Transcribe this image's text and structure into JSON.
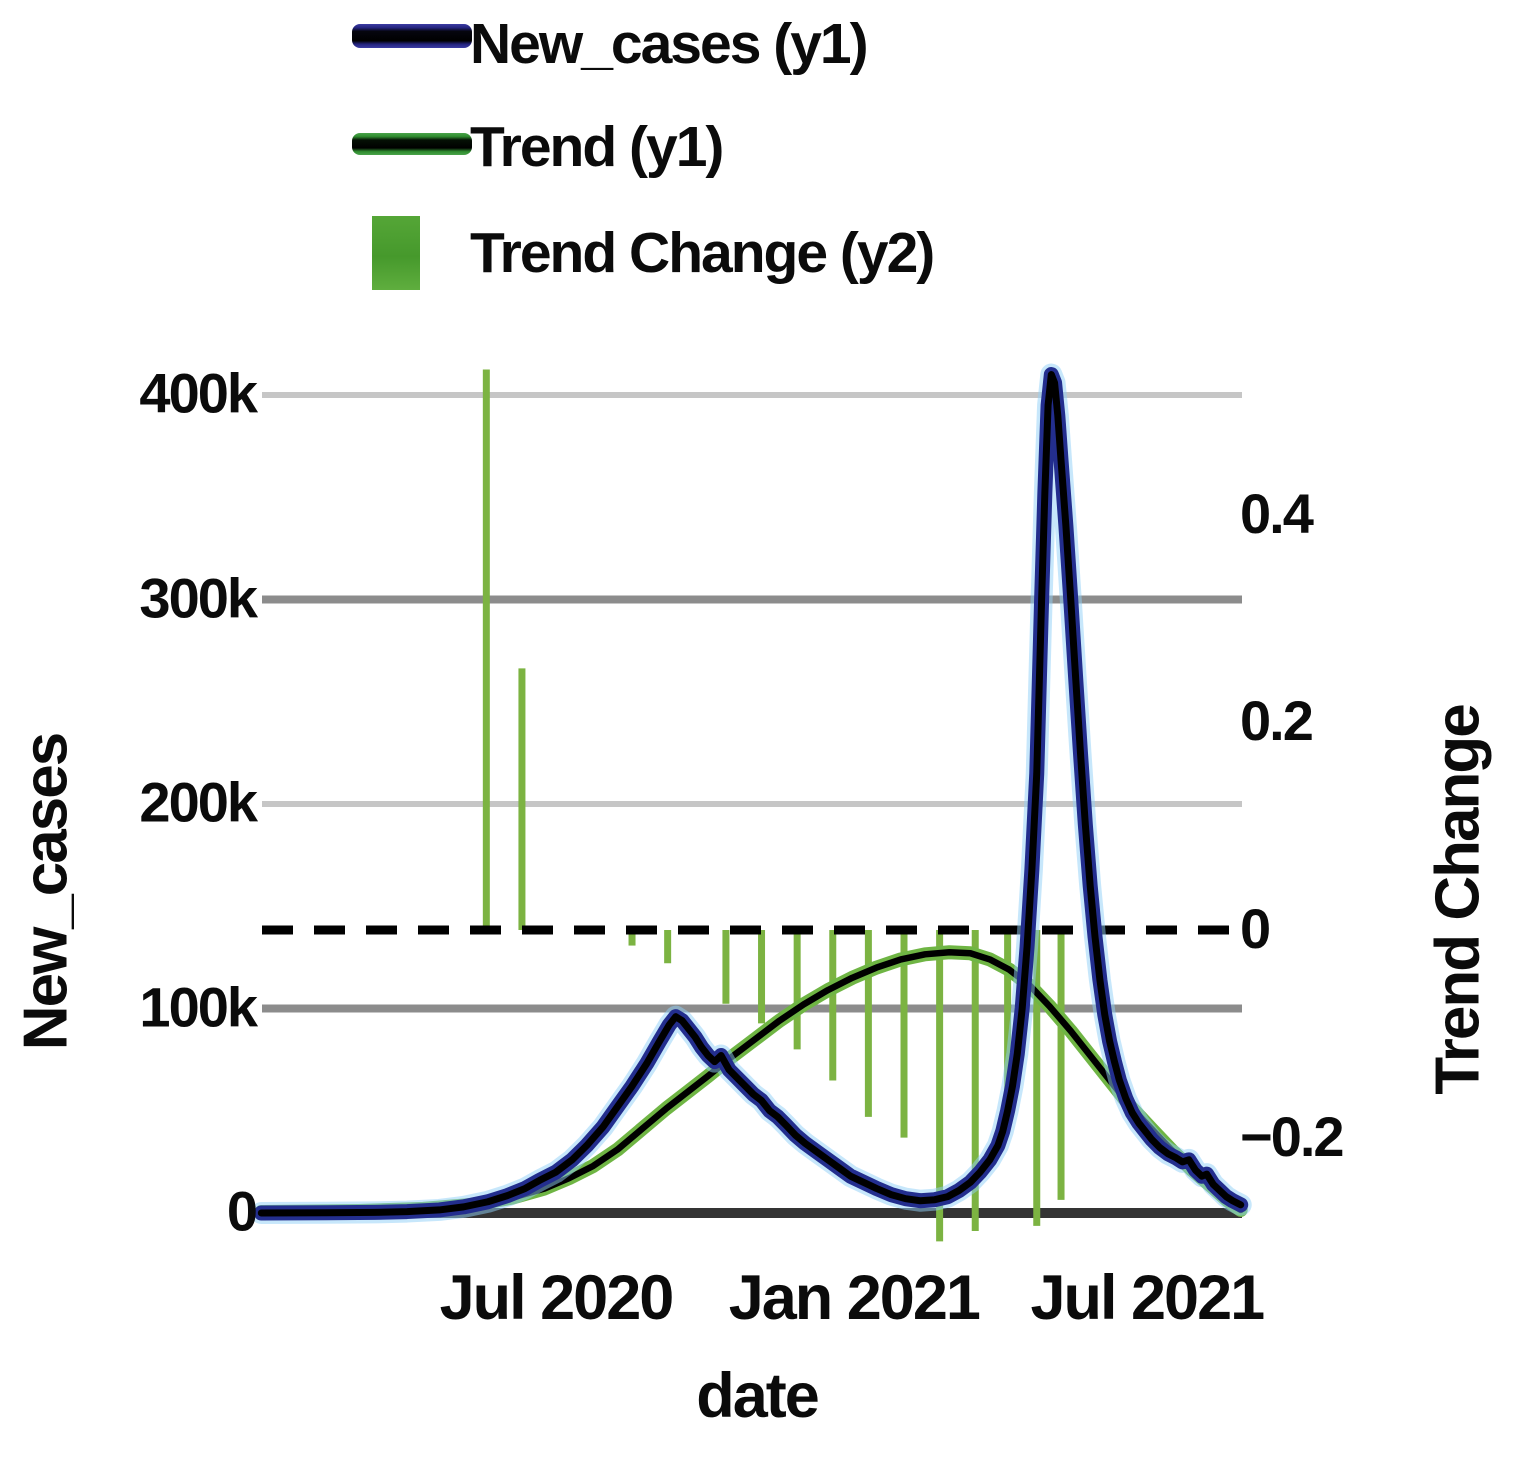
{
  "legend": {
    "items": [
      {
        "label": "New_cases (y1)",
        "marker": "line",
        "color": "#232e8e"
      },
      {
        "label": "Trend (y1)",
        "marker": "line",
        "color": "#2f8c2f"
      },
      {
        "label": "Trend Change (y2)",
        "marker": "square",
        "color": "#46992c"
      }
    ]
  },
  "axes": {
    "y1": {
      "title": "New_cases",
      "unit": "cases per day (k = thousand)",
      "ticks": [
        {
          "label": "0",
          "value": 0
        },
        {
          "label": "100k",
          "value": 100
        },
        {
          "label": "200k",
          "value": 200
        },
        {
          "label": "300k",
          "value": 300
        },
        {
          "label": "400k",
          "value": 400
        }
      ],
      "range_k": [
        0,
        418
      ]
    },
    "y2": {
      "title": "Trend Change",
      "ticks": [
        {
          "label": "−0.2",
          "value": -0.2
        },
        {
          "label": "0",
          "value": 0
        },
        {
          "label": "0.2",
          "value": 0.2
        },
        {
          "label": "0.4",
          "value": 0.4
        }
      ],
      "range": [
        -0.31,
        0.56
      ],
      "zero_line": "dashed"
    },
    "x": {
      "title": "date",
      "start_date": "2020-01-01",
      "t_is": "days since start_date",
      "ticks": [
        {
          "label": "Jul 2020",
          "t": 182
        },
        {
          "label": "Jan 2021",
          "t": 366
        },
        {
          "label": "Jul 2021",
          "t": 547
        }
      ],
      "range_t": [
        0,
        605
      ]
    }
  },
  "chart_data": {
    "type": "line",
    "title": "",
    "xlabel": "date",
    "ylabel_left": "New_cases",
    "ylabel_right": "Trend Change",
    "grid": "horizontal",
    "legend_position": "top-left",
    "series": [
      {
        "name": "New_cases (y1)",
        "axis": "y1",
        "type": "line",
        "color": "#232e8e",
        "units": "thousands",
        "points": [
          [
            0,
            0
          ],
          [
            40,
            0.1
          ],
          [
            70,
            0.3
          ],
          [
            90,
            0.7
          ],
          [
            110,
            1.5
          ],
          [
            125,
            3
          ],
          [
            140,
            5.5
          ],
          [
            152,
            8.5
          ],
          [
            163,
            12
          ],
          [
            172,
            16
          ],
          [
            182,
            20
          ],
          [
            192,
            26
          ],
          [
            201,
            33
          ],
          [
            211,
            42
          ],
          [
            220,
            52
          ],
          [
            229,
            62
          ],
          [
            238,
            73
          ],
          [
            246,
            84
          ],
          [
            252,
            92
          ],
          [
            256,
            96
          ],
          [
            260,
            94
          ],
          [
            264,
            90
          ],
          [
            268,
            86
          ],
          [
            272,
            81
          ],
          [
            276,
            77
          ],
          [
            280,
            74
          ],
          [
            284,
            77
          ],
          [
            289,
            70
          ],
          [
            294,
            66
          ],
          [
            299,
            62
          ],
          [
            304,
            58
          ],
          [
            309,
            55
          ],
          [
            314,
            50
          ],
          [
            319,
            47
          ],
          [
            324,
            43
          ],
          [
            330,
            38
          ],
          [
            336,
            34
          ],
          [
            343,
            30
          ],
          [
            350,
            26
          ],
          [
            357,
            22
          ],
          [
            364,
            18
          ],
          [
            372,
            15
          ],
          [
            380,
            12
          ],
          [
            389,
            9
          ],
          [
            398,
            7
          ],
          [
            407,
            6
          ],
          [
            416,
            6.5
          ],
          [
            424,
            8
          ],
          [
            431,
            11
          ],
          [
            438,
            15
          ],
          [
            444,
            20
          ],
          [
            450,
            26
          ],
          [
            455,
            33
          ],
          [
            458,
            40
          ],
          [
            461,
            50
          ],
          [
            464,
            62
          ],
          [
            467,
            78
          ],
          [
            470,
            100
          ],
          [
            473,
            130
          ],
          [
            476,
            168
          ],
          [
            479,
            215
          ],
          [
            482,
            300
          ],
          [
            484,
            352
          ],
          [
            486,
            395
          ],
          [
            488,
            410
          ],
          [
            490,
            406
          ],
          [
            492,
            390
          ],
          [
            494,
            368
          ],
          [
            497,
            336
          ],
          [
            500,
            300
          ],
          [
            503,
            262
          ],
          [
            506,
            225
          ],
          [
            509,
            190
          ],
          [
            512,
            160
          ],
          [
            515,
            135
          ],
          [
            518,
            114
          ],
          [
            521,
            97
          ],
          [
            524,
            84
          ],
          [
            527,
            74
          ],
          [
            530,
            65
          ],
          [
            534,
            56
          ],
          [
            538,
            49
          ],
          [
            542,
            44
          ],
          [
            546,
            40
          ],
          [
            550,
            36
          ],
          [
            555,
            32
          ],
          [
            560,
            29
          ],
          [
            565,
            27
          ],
          [
            569,
            25
          ],
          [
            573,
            26
          ],
          [
            577,
            21
          ],
          [
            581,
            18
          ],
          [
            584,
            19
          ],
          [
            588,
            14
          ],
          [
            592,
            11
          ],
          [
            596,
            8
          ],
          [
            600,
            6
          ],
          [
            605,
            4
          ]
        ]
      },
      {
        "name": "Trend (y1)",
        "axis": "y1",
        "type": "line",
        "color": "#2f8c2f",
        "units": "thousands",
        "points": [
          [
            0,
            0.5
          ],
          [
            60,
            1
          ],
          [
            100,
            2
          ],
          [
            130,
            4
          ],
          [
            155,
            7.5
          ],
          [
            175,
            12
          ],
          [
            190,
            17
          ],
          [
            205,
            23
          ],
          [
            220,
            31
          ],
          [
            235,
            41
          ],
          [
            250,
            51
          ],
          [
            263,
            59
          ],
          [
            276,
            67
          ],
          [
            290,
            76
          ],
          [
            305,
            85
          ],
          [
            320,
            94
          ],
          [
            335,
            102
          ],
          [
            350,
            109
          ],
          [
            365,
            115
          ],
          [
            380,
            120
          ],
          [
            395,
            124
          ],
          [
            410,
            126.5
          ],
          [
            425,
            127.5
          ],
          [
            438,
            127
          ],
          [
            450,
            124
          ],
          [
            462,
            119
          ],
          [
            475,
            111
          ],
          [
            487,
            101
          ],
          [
            500,
            89
          ],
          [
            512,
            77
          ],
          [
            525,
            64
          ],
          [
            537,
            52
          ],
          [
            550,
            41
          ],
          [
            562,
            31
          ],
          [
            575,
            21
          ],
          [
            587,
            13
          ],
          [
            597,
            6
          ],
          [
            605,
            1.5
          ]
        ]
      },
      {
        "name": "Trend Change (y2)",
        "axis": "y2",
        "type": "bar",
        "color": "#7cb342",
        "points": [
          [
            139,
            0.54
          ],
          [
            161,
            0.252
          ],
          [
            229,
            -0.015
          ],
          [
            251,
            -0.032
          ],
          [
            287,
            -0.071
          ],
          [
            309,
            -0.09
          ],
          [
            331,
            -0.115
          ],
          [
            353,
            -0.145
          ],
          [
            375,
            -0.18
          ],
          [
            397,
            -0.2
          ],
          [
            419,
            -0.3
          ],
          [
            441,
            -0.29
          ],
          [
            461,
            -0.17
          ],
          [
            479,
            -0.285
          ],
          [
            494,
            -0.26
          ]
        ]
      }
    ]
  },
  "colors": {
    "new_cases_line": "#232e8e",
    "new_cases_core": "#000000",
    "new_cases_halo": "#8fd0f8",
    "trend_line": "#6fb544",
    "trend_core": "#000000",
    "bar": "#7cb342",
    "grid_light": "#c6c6c6",
    "grid_medium": "#8c8c8c",
    "baseline": "#343434",
    "zero_dash": "#000000",
    "text": "#0b0b0b",
    "background": "#ffffff"
  }
}
